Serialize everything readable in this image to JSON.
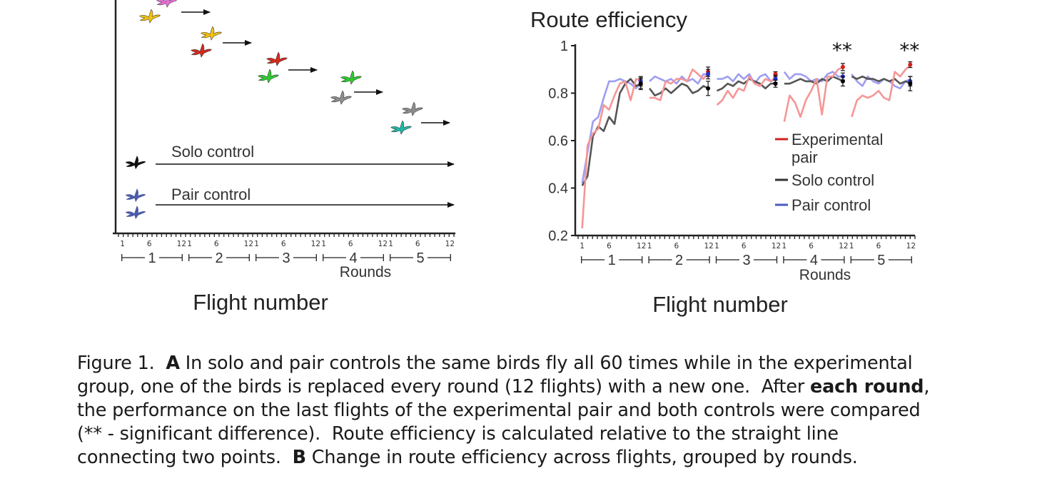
{
  "panel_a": {
    "labels": {
      "solo": "Solo control",
      "pair": "Pair control",
      "rounds": "Rounds",
      "xlabel": "Flight number"
    },
    "bird_colors": [
      "#e66fd6",
      "#f2c20f",
      "#f2c20f",
      "#d42a1e",
      "#d42a1e",
      "#2fcb2f",
      "#2fcb2f",
      "#8e8e8e",
      "#8e8e8e",
      "#1fb8a7"
    ],
    "solo_color": "#111111",
    "pair_color": "#4a5ba8"
  },
  "chart_data": {
    "type": "line",
    "title": "Route efficiency",
    "xlabel": "Flight number",
    "group_label": "Rounds",
    "ylim": [
      0.2,
      1.0
    ],
    "yticks": [
      "0.2",
      "0.4",
      "0.6",
      "0.8",
      "1"
    ],
    "round_labels": [
      "1",
      "2",
      "3",
      "4",
      "5"
    ],
    "round_tick_labels": [
      "1",
      "6",
      "12"
    ],
    "significance": [
      "**",
      "**"
    ],
    "legend": [
      {
        "label": "Experimental pair",
        "color": "#d41f1f"
      },
      {
        "label": "Solo control",
        "color": "#333333"
      },
      {
        "label": "Pair control",
        "color": "#4a5bc4"
      }
    ],
    "series": [
      {
        "name": "Experimental pair",
        "color": "#f59696",
        "rounds": [
          [
            0.23,
            0.58,
            0.63,
            0.65,
            0.75,
            0.73,
            0.79,
            0.84,
            0.85,
            0.77,
            0.86,
            0.85
          ],
          [
            0.78,
            0.78,
            0.77,
            0.85,
            0.84,
            0.86,
            0.86,
            0.85,
            0.9,
            0.88,
            0.86,
            0.89
          ],
          [
            0.75,
            0.77,
            0.81,
            0.78,
            0.82,
            0.81,
            0.87,
            0.84,
            0.83,
            0.86,
            0.85,
            0.87
          ],
          [
            0.68,
            0.79,
            0.76,
            0.7,
            0.77,
            0.81,
            0.86,
            0.71,
            0.87,
            0.87,
            0.9,
            0.91
          ],
          [
            0.7,
            0.77,
            0.79,
            0.78,
            0.79,
            0.81,
            0.78,
            0.77,
            0.89,
            0.87,
            0.9,
            0.92
          ]
        ]
      },
      {
        "name": "Solo control",
        "color": "#555555",
        "rounds": [
          [
            0.41,
            0.45,
            0.62,
            0.66,
            0.64,
            0.7,
            0.67,
            0.8,
            0.84,
            0.86,
            0.83,
            0.84
          ],
          [
            0.82,
            0.79,
            0.8,
            0.82,
            0.8,
            0.82,
            0.84,
            0.83,
            0.8,
            0.81,
            0.83,
            0.82
          ],
          [
            0.81,
            0.82,
            0.84,
            0.83,
            0.85,
            0.84,
            0.86,
            0.85,
            0.84,
            0.82,
            0.84,
            0.84
          ],
          [
            0.84,
            0.84,
            0.85,
            0.86,
            0.85,
            0.85,
            0.84,
            0.86,
            0.85,
            0.87,
            0.86,
            0.85
          ],
          [
            0.87,
            0.86,
            0.87,
            0.86,
            0.86,
            0.85,
            0.86,
            0.85,
            0.86,
            0.84,
            0.85,
            0.84
          ]
        ]
      },
      {
        "name": "Pair control",
        "color": "#9d9ef2",
        "rounds": [
          [
            0.42,
            0.55,
            0.68,
            0.7,
            0.78,
            0.85,
            0.85,
            0.86,
            0.85,
            0.84,
            0.82,
            0.85
          ],
          [
            0.85,
            0.87,
            0.86,
            0.85,
            0.86,
            0.84,
            0.87,
            0.85,
            0.86,
            0.84,
            0.88,
            0.88
          ],
          [
            0.86,
            0.86,
            0.87,
            0.85,
            0.88,
            0.86,
            0.88,
            0.84,
            0.87,
            0.88,
            0.85,
            0.86
          ],
          [
            0.89,
            0.86,
            0.88,
            0.88,
            0.87,
            0.85,
            0.86,
            0.85,
            0.88,
            0.89,
            0.87,
            0.87
          ],
          [
            0.88,
            0.85,
            0.83,
            0.87,
            0.85,
            0.84,
            0.86,
            0.85,
            0.83,
            0.82,
            0.85,
            0.86
          ]
        ]
      }
    ],
    "endpoint_means": [
      {
        "name": "Experimental pair",
        "color": "#d41f1f",
        "values": [
          0.84,
          0.89,
          0.88,
          0.91,
          0.92
        ],
        "err": [
          0.02,
          0.02,
          0.01,
          0.015,
          0.012
        ]
      },
      {
        "name": "Pair control",
        "color": "#1f2ed4",
        "values": [
          0.85,
          0.88,
          0.86,
          0.87,
          0.85
        ],
        "err": [
          0.02,
          0.02,
          0.015,
          0.015,
          0.02
        ]
      },
      {
        "name": "Solo control",
        "color": "#000000",
        "values": [
          0.84,
          0.82,
          0.84,
          0.85,
          0.84
        ],
        "err": [
          0.025,
          0.03,
          0.015,
          0.02,
          0.03
        ]
      }
    ]
  },
  "caption": {
    "fig_label": "Figure 1.",
    "a_letter": "A",
    "a_text_1": "In solo and pair controls the same birds fly all 60 times while in the experimental group, one of the birds is replaced every round (12 flights) with a new one.",
    "a_text_2": "After",
    "a_bold": "each round",
    "a_text_3": ", the performance on the last flights of the experimental pair and both controls were compared (** - significant difference).",
    "a_text_4": "Route efficiency is calculated relative to the straight line connecting two points.",
    "b_letter": "B",
    "b_text": "Change in route efficiency across flights, grouped by rounds."
  }
}
